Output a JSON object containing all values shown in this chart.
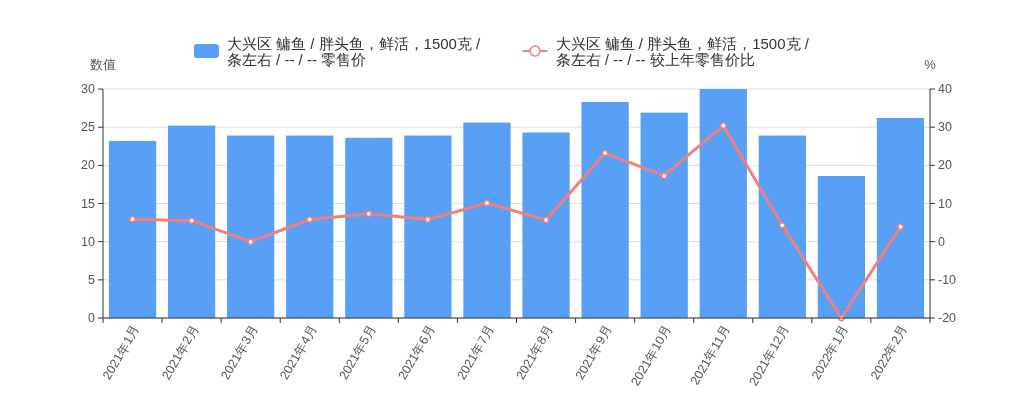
{
  "chart_data": {
    "type": "bar",
    "categories": [
      "2021年1月",
      "2021年2月",
      "2021年3月",
      "2021年4月",
      "2021年5月",
      "2021年6月",
      "2021年7月",
      "2021年8月",
      "2021年9月",
      "2021年10月",
      "2021年11月",
      "2021年12月",
      "2022年1月",
      "2022年2月"
    ],
    "series": [
      {
        "name": "大兴区 鳙鱼 / 胖头鱼，鲜活，1500克 / 条左右 / -- / -- 零售价",
        "color": "#57a0f5",
        "values": [
          23.2,
          25.2,
          23.9,
          23.9,
          23.6,
          23.9,
          25.6,
          24.3,
          28.3,
          26.9,
          30,
          23.9,
          18.6,
          26.2
        ]
      },
      {
        "name": "大兴区 鳙鱼 / 胖头鱼，鲜活，1500克 / 条左右 / -- / -- 较上年零售价比",
        "type": "line",
        "axis": "y2",
        "color": "#f08080",
        "values": [
          5.9,
          5.5,
          0,
          5.8,
          7.3,
          5.8,
          10.1,
          5.7,
          23.2,
          17.3,
          30.4,
          4.3,
          -20,
          3.9
        ]
      }
    ],
    "ylabel": "数值",
    "y2label": "%",
    "ylim": [
      0,
      30
    ],
    "yticks": [
      0,
      5,
      10,
      15,
      20,
      25,
      30
    ],
    "y2lim": [
      -20,
      40
    ],
    "y2ticks": [
      -20,
      -10,
      0,
      10,
      20,
      30,
      40
    ],
    "grid": "y",
    "legend": "top",
    "marker": "circle"
  }
}
